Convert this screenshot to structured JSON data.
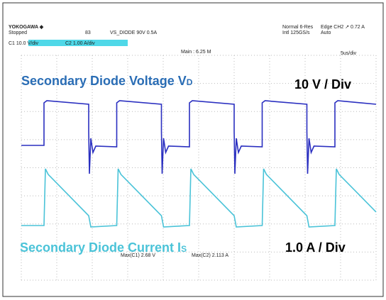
{
  "header": {
    "brand": "YOKOGAWA ◆",
    "status": "Stopped",
    "count": "83",
    "setup": "VS_DIODE 90V 0.5A",
    "ch1": "C1  10.0 V/div",
    "ch2": "C2  1.00 A/div",
    "mode": "Normal 6-Res",
    "trigger": "Edge CH2 ↗ 0.72 A",
    "rate": "Intl 125GS/s",
    "trigger_mode": "Auto",
    "main": "Main : 6.25 M",
    "timebase": "5us/div"
  },
  "annotations": {
    "voltage_title": "Secondary Diode Voltage V",
    "voltage_sub": "D",
    "voltage_scale": "10 V / Div",
    "current_title": "Secondary Diode Current I",
    "current_sub": "S",
    "current_scale": "1.0 A / Div"
  },
  "measurements": {
    "max_c1": "Max(C1)   2.68 V",
    "max_c2": "Max(C2)   2.113 A"
  }
}
